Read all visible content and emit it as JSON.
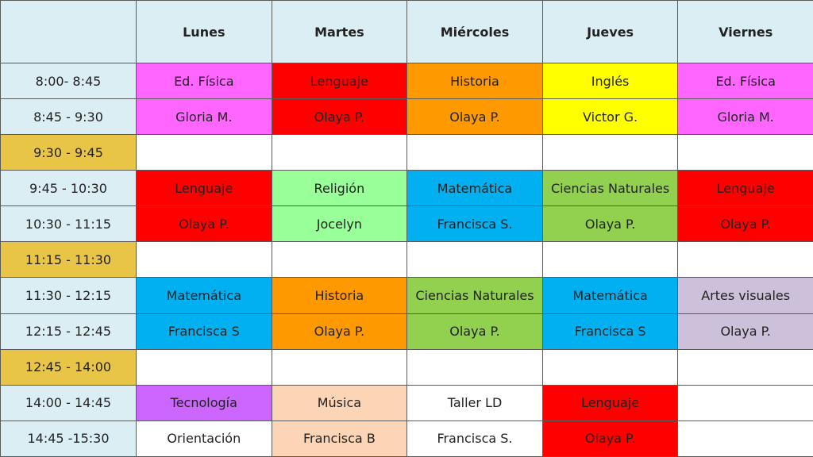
{
  "colors": {
    "header": "#dbeef3",
    "break": "#e8c547",
    "magenta": "#ff66ff",
    "red": "#ff0000",
    "orange": "#ff9900",
    "yellow": "#ffff00",
    "cyan": "#00b0f0",
    "lightgreen": "#99ff99",
    "green": "#92d050",
    "lavender": "#ccc0da",
    "purple": "#cc66ff",
    "peach": "#fbd5b5",
    "white": "#ffffff"
  },
  "days": [
    "Lunes",
    "Martes",
    "Miércoles",
    "Jueves",
    "Viernes"
  ],
  "rows": [
    {
      "time": "8:00- 8:45",
      "break": false,
      "cells": [
        {
          "text": "Ed. Física",
          "color": "magenta"
        },
        {
          "text": "Lenguaje",
          "color": "red"
        },
        {
          "text": "Historia",
          "color": "orange"
        },
        {
          "text": "Inglés",
          "color": "yellow"
        },
        {
          "text": "Ed. Física",
          "color": "magenta"
        }
      ]
    },
    {
      "time": "8:45 - 9:30",
      "break": false,
      "cells": [
        {
          "text": "Gloria M.",
          "color": "magenta"
        },
        {
          "text": "Olaya P.",
          "color": "red"
        },
        {
          "text": "Olaya P.",
          "color": "orange"
        },
        {
          "text": "Victor G.",
          "color": "yellow"
        },
        {
          "text": "Gloria M.",
          "color": "magenta"
        }
      ]
    },
    {
      "time": "9:30 - 9:45",
      "break": true,
      "cells": [
        {
          "text": "",
          "color": "white"
        },
        {
          "text": "",
          "color": "white"
        },
        {
          "text": "",
          "color": "white"
        },
        {
          "text": "",
          "color": "white"
        },
        {
          "text": "",
          "color": "white"
        }
      ]
    },
    {
      "time": "9:45 - 10:30",
      "break": false,
      "cells": [
        {
          "text": "Lenguaje",
          "color": "red"
        },
        {
          "text": "Religión",
          "color": "lightgreen"
        },
        {
          "text": "Matemática",
          "color": "cyan"
        },
        {
          "text": "Ciencias Naturales",
          "color": "green"
        },
        {
          "text": "Lenguaje",
          "color": "red"
        }
      ]
    },
    {
      "time": "10:30 - 11:15",
      "break": false,
      "cells": [
        {
          "text": "Olaya P.",
          "color": "red"
        },
        {
          "text": "Jocelyn",
          "color": "lightgreen"
        },
        {
          "text": "Francisca S.",
          "color": "cyan"
        },
        {
          "text": "Olaya P.",
          "color": "green"
        },
        {
          "text": "Olaya P.",
          "color": "red"
        }
      ]
    },
    {
      "time": "11:15 - 11:30",
      "break": true,
      "cells": [
        {
          "text": "",
          "color": "white"
        },
        {
          "text": "",
          "color": "white"
        },
        {
          "text": "",
          "color": "white"
        },
        {
          "text": "",
          "color": "white"
        },
        {
          "text": "",
          "color": "white"
        }
      ]
    },
    {
      "time": "11:30 - 12:15",
      "break": false,
      "cells": [
        {
          "text": "Matemática",
          "color": "cyan"
        },
        {
          "text": "Historia",
          "color": "orange"
        },
        {
          "text": "Ciencias Naturales",
          "color": "green"
        },
        {
          "text": "Matemática",
          "color": "cyan"
        },
        {
          "text": "Artes visuales",
          "color": "lavender"
        }
      ]
    },
    {
      "time": "12:15 - 12:45",
      "break": false,
      "cells": [
        {
          "text": "Francisca S",
          "color": "cyan"
        },
        {
          "text": "Olaya P.",
          "color": "orange"
        },
        {
          "text": "Olaya P.",
          "color": "green"
        },
        {
          "text": "Francisca S",
          "color": "cyan"
        },
        {
          "text": "Olaya P.",
          "color": "lavender"
        }
      ]
    },
    {
      "time": "12:45 - 14:00",
      "break": true,
      "cells": [
        {
          "text": "",
          "color": "white"
        },
        {
          "text": "",
          "color": "white"
        },
        {
          "text": "",
          "color": "white"
        },
        {
          "text": "",
          "color": "white"
        },
        {
          "text": "",
          "color": "white"
        }
      ]
    },
    {
      "time": "14:00 - 14:45",
      "break": false,
      "cells": [
        {
          "text": "Tecnología",
          "color": "purple"
        },
        {
          "text": "Música",
          "color": "peach"
        },
        {
          "text": "Taller LD",
          "color": "white"
        },
        {
          "text": "Lenguaje",
          "color": "red"
        },
        {
          "text": "",
          "color": "white"
        }
      ]
    },
    {
      "time": "14:45 -15:30",
      "break": false,
      "cells": [
        {
          "text": "Orientación",
          "color": "white"
        },
        {
          "text": "Francisca B",
          "color": "peach"
        },
        {
          "text": "Francisca S.",
          "color": "white"
        },
        {
          "text": "Olaya P.",
          "color": "red"
        },
        {
          "text": "",
          "color": "white"
        }
      ]
    }
  ]
}
